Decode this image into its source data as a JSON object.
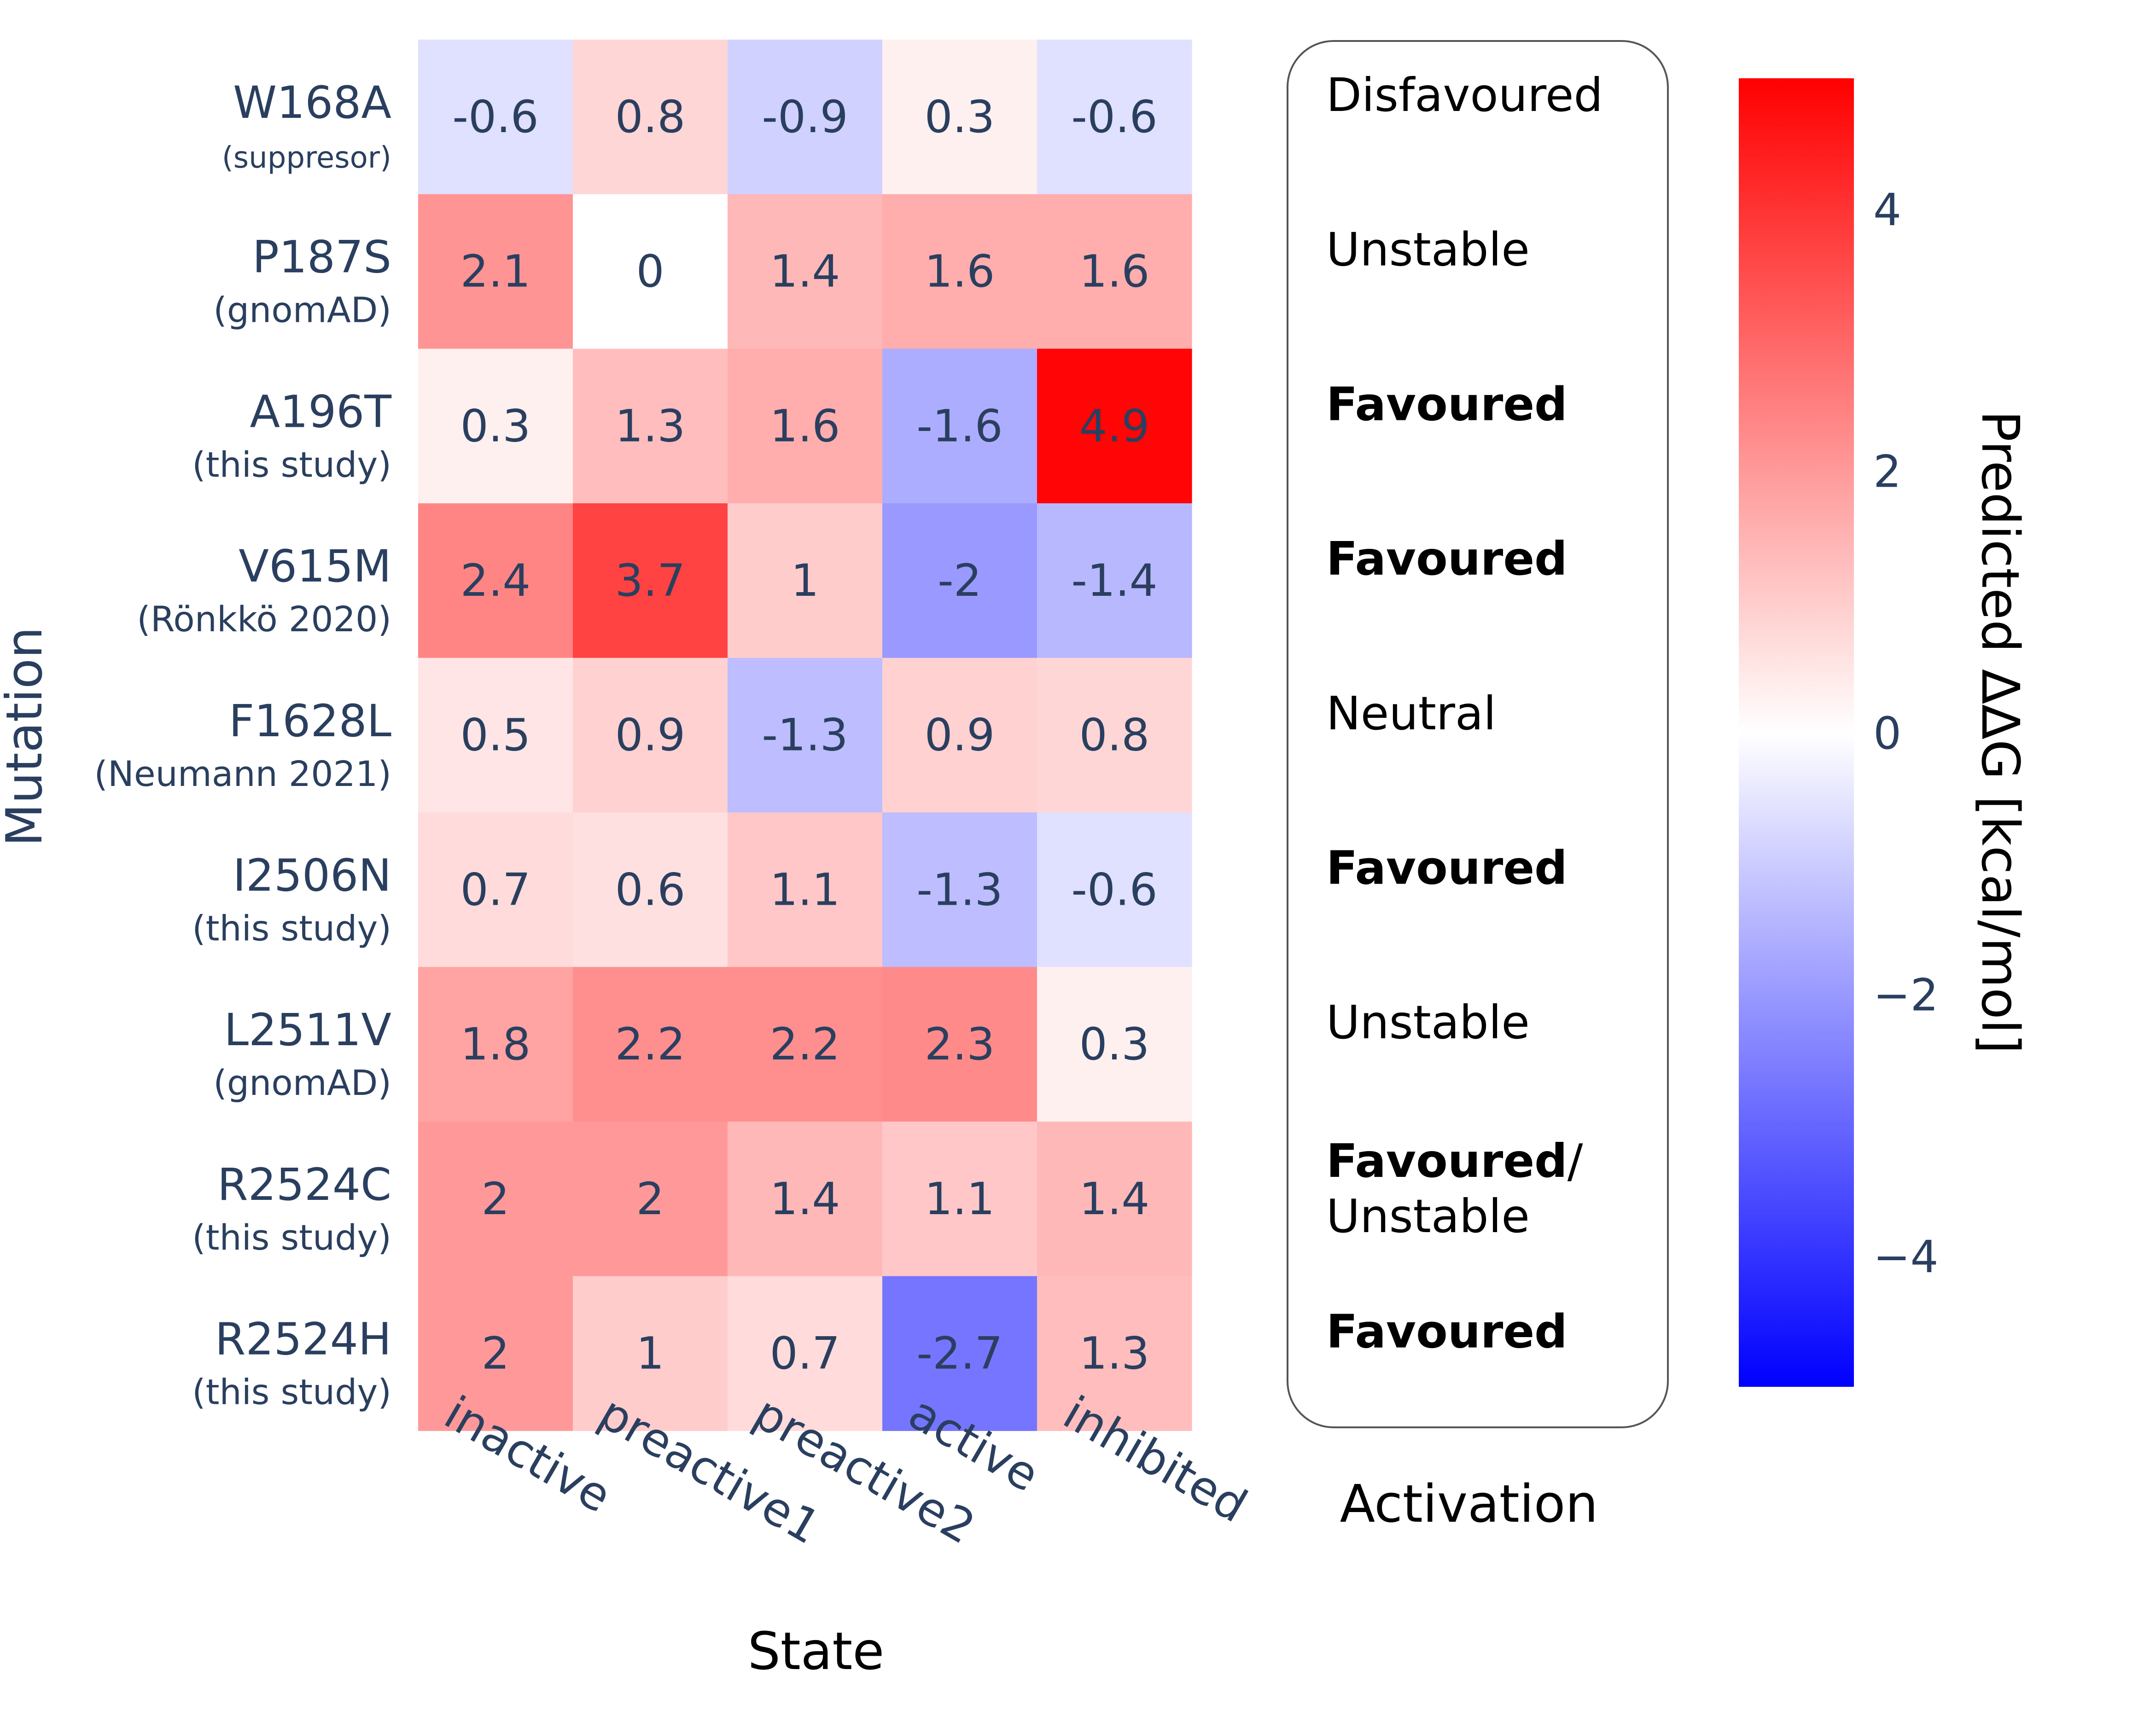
{
  "chart_data": {
    "type": "heatmap",
    "xlabel": "State",
    "ylabel": "Mutation",
    "x_categories": [
      "inactive",
      "preactive1",
      "preactive2",
      "active",
      "inhibited"
    ],
    "rows": [
      {
        "name": "W168A",
        "source": "(suppresor)",
        "values": [
          -0.6,
          0.8,
          -0.9,
          0.3,
          -0.6
        ],
        "activation": [
          {
            "text": "Disfavoured",
            "bold": false
          }
        ]
      },
      {
        "name": "P187S",
        "source": "(gnomAD)",
        "values": [
          2.1,
          0,
          1.4,
          1.6,
          1.6
        ],
        "activation": [
          {
            "text": "Unstable",
            "bold": false
          }
        ]
      },
      {
        "name": "A196T",
        "source": "(this study)",
        "values": [
          0.3,
          1.3,
          1.6,
          -1.6,
          4.9
        ],
        "activation": [
          {
            "text": "Favoured",
            "bold": true
          }
        ]
      },
      {
        "name": "V615M",
        "source": "(Rönkkö 2020)",
        "values": [
          2.4,
          3.7,
          1,
          -2,
          -1.4
        ],
        "activation": [
          {
            "text": "Favoured",
            "bold": true
          }
        ]
      },
      {
        "name": "F1628L",
        "source": "(Neumann 2021)",
        "values": [
          0.5,
          0.9,
          -1.3,
          0.9,
          0.8
        ],
        "activation": [
          {
            "text": "Neutral",
            "bold": false
          }
        ]
      },
      {
        "name": "I2506N",
        "source": "(this study)",
        "values": [
          0.7,
          0.6,
          1.1,
          -1.3,
          -0.6
        ],
        "activation": [
          {
            "text": "Favoured",
            "bold": true
          }
        ]
      },
      {
        "name": "L2511V",
        "source": "(gnomAD)",
        "values": [
          1.8,
          2.2,
          2.2,
          2.3,
          0.3
        ],
        "activation": [
          {
            "text": "Unstable",
            "bold": false
          }
        ]
      },
      {
        "name": "R2524C",
        "source": "(this study)",
        "values": [
          2,
          2,
          1.4,
          1.1,
          1.4
        ],
        "activation": [
          {
            "text": "Favoured",
            "bold": true
          },
          {
            "text": "/",
            "bold": false
          },
          {
            "text": "Unstable",
            "bold": false
          }
        ]
      },
      {
        "name": "R2524H",
        "source": "(this study)",
        "values": [
          2,
          1,
          0.7,
          -2.7,
          1.3
        ],
        "activation": [
          {
            "text": "Favoured",
            "bold": true
          }
        ]
      }
    ],
    "activation_label": "Activation",
    "colorbar": {
      "title": "Predicted ΔΔG [kcal/mol]",
      "range": [
        -5,
        5
      ],
      "ticks": [
        4,
        2,
        0,
        -2,
        -4
      ],
      "tick_labels": [
        "4",
        "2",
        "0",
        "−2",
        "−4"
      ],
      "colorscale": [
        "#0000ff",
        "#ffffff",
        "#ff0000"
      ]
    }
  }
}
